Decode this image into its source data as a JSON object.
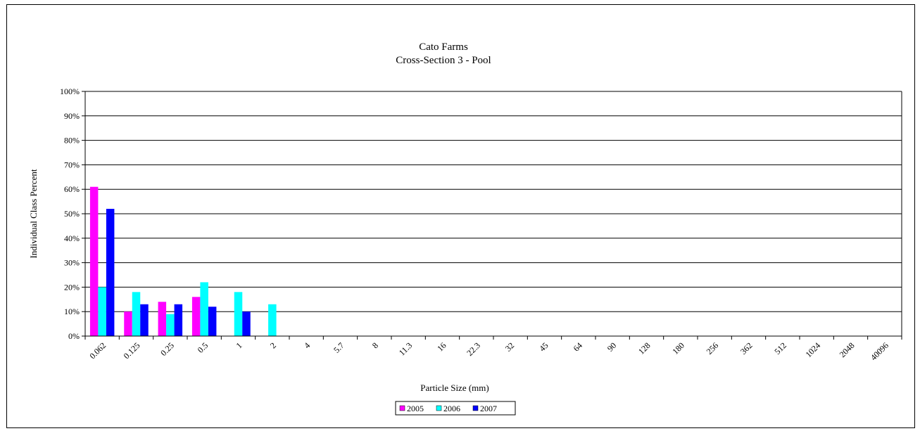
{
  "chart_data": {
    "type": "bar",
    "title": "Cato Farms",
    "subtitle": "Cross-Section 3 - Pool",
    "xlabel": "Particle Size (mm)",
    "ylabel": "Individual Class Percent",
    "ylim": [
      0,
      100
    ],
    "y_ticks": [
      "0%",
      "10%",
      "20%",
      "30%",
      "40%",
      "50%",
      "60%",
      "70%",
      "80%",
      "90%",
      "100%"
    ],
    "grid": true,
    "legend_position": "bottom",
    "categories": [
      "0.062",
      "0.125",
      "0.25",
      "0.5",
      "1",
      "2",
      "4",
      "5.7",
      "8",
      "11.3",
      "16",
      "22.3",
      "32",
      "45",
      "64",
      "90",
      "128",
      "180",
      "256",
      "362",
      "512",
      "1024",
      "2048",
      "40096"
    ],
    "series": [
      {
        "name": "2005",
        "color": "#ff00ff",
        "values": [
          61,
          10,
          14,
          16,
          0,
          0,
          0,
          0,
          0,
          0,
          0,
          0,
          0,
          0,
          0,
          0,
          0,
          0,
          0,
          0,
          0,
          0,
          0,
          0
        ]
      },
      {
        "name": "2006",
        "color": "#00ffff",
        "values": [
          20,
          18,
          9,
          22,
          18,
          13,
          0,
          0,
          0,
          0,
          0,
          0,
          0,
          0,
          0,
          0,
          0,
          0,
          0,
          0,
          0,
          0,
          0,
          0
        ]
      },
      {
        "name": "2007",
        "color": "#0000ff",
        "values": [
          52,
          13,
          13,
          12,
          10,
          0,
          0,
          0,
          0,
          0,
          0,
          0,
          0,
          0,
          0,
          0,
          0,
          0,
          0,
          0,
          0,
          0,
          0,
          0
        ]
      }
    ]
  }
}
